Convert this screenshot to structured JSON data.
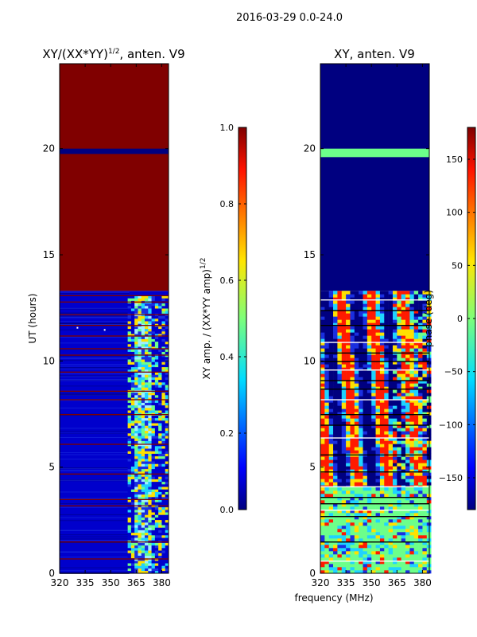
{
  "figure": {
    "suptitle": "2016-03-29 0.0-24.0",
    "xlabel_shared": "frequency (MHz)",
    "colors": {
      "saturated": "#800000",
      "floor": "#000080",
      "blue": "#0000cc",
      "midblue": "#1a2fe0",
      "cyan": "#1fd3ff",
      "green": "#6cff8a",
      "yellow": "#ffe000",
      "red": "#ff1a00",
      "lightcyan": "#9ef0ff"
    }
  },
  "chart_data": [
    {
      "type": "heatmap",
      "id": "left",
      "title": "XY/(XX*YY)",
      "title_sup": "1/2",
      "title_suffix": ", anten. V9",
      "xlabel": "",
      "ylabel": "UT (hours)",
      "xlim": [
        320,
        384
      ],
      "ylim": [
        0,
        24
      ],
      "xticks": [
        320,
        335,
        350,
        365,
        380
      ],
      "yticks": [
        0,
        5,
        10,
        15,
        20
      ],
      "colorbar": {
        "label": "XY amp. / (XX*YY amp)",
        "label_sup": "1/2",
        "range": [
          0.0,
          1.0
        ],
        "ticks": [
          "0.0",
          "0.2",
          "0.4",
          "0.6",
          "0.8",
          "1.0"
        ],
        "tick_values": [
          0.0,
          0.2,
          0.4,
          0.6,
          0.8,
          1.0
        ]
      },
      "regions": [
        {
          "ut": [
            13.3,
            24.0
          ],
          "description": "saturated",
          "value": 1.0
        },
        {
          "ut": [
            19.75,
            20.0
          ],
          "description": "dropout band",
          "value": 0.05
        },
        {
          "ut": [
            0.0,
            13.3
          ],
          "description": "low correlation",
          "value": 0.08
        },
        {
          "ut": [
            0.0,
            13.0
          ],
          "freq": [
            360,
            372
          ],
          "description": "enhanced amplitude",
          "value": 0.5
        }
      ],
      "saturated_rows_ut": [
        0.7,
        1.5,
        3.2,
        3.5,
        4.7,
        6.1,
        7.5,
        8.2,
        8.6,
        9.5,
        10.3,
        10.6,
        11.2,
        11.7,
        12.2,
        12.8,
        13.1
      ]
    },
    {
      "type": "heatmap",
      "id": "right",
      "title": "XY, anten. V9",
      "xlabel": "",
      "ylabel": "",
      "xlim": [
        320,
        384
      ],
      "ylim": [
        0,
        24
      ],
      "xticks": [
        320,
        335,
        350,
        365,
        380
      ],
      "yticks": [
        0,
        5,
        10,
        15,
        20
      ],
      "colorbar": {
        "label": "phase (deg)",
        "range": [
          -180,
          180
        ],
        "ticks": [
          "−150",
          "−100",
          "−50",
          "0",
          "50",
          "100",
          "150"
        ],
        "tick_values": [
          -150,
          -100,
          -50,
          0,
          50,
          100,
          150
        ]
      },
      "regions": [
        {
          "ut": [
            13.3,
            24.0
          ],
          "description": "flat phase",
          "value": -180
        },
        {
          "ut": [
            19.6,
            20.0
          ],
          "description": "phase band",
          "value": 0
        },
        {
          "ut": [
            4.0,
            13.3
          ],
          "description": "phase wraps",
          "value": 0
        },
        {
          "ut": [
            0.0,
            4.0
          ],
          "description": "near-zero phase",
          "value": -20
        }
      ],
      "flagged_rows_ut": [
        0.6,
        1.5,
        2.7,
        3.0,
        3.3,
        3.6,
        4.1,
        4.8,
        5.6,
        6.4,
        7.0,
        7.5,
        8.2,
        8.7,
        9.1,
        9.6,
        10.0,
        10.4,
        10.9,
        11.7,
        12.4,
        12.9
      ]
    }
  ]
}
